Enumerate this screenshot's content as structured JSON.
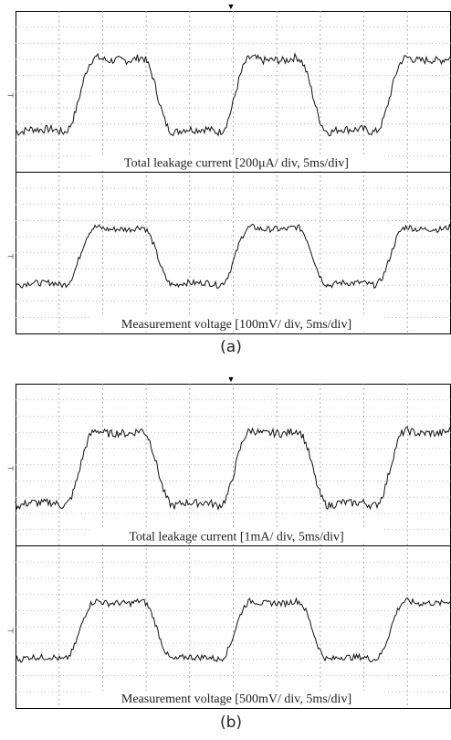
{
  "panels": [
    {
      "label": "(a)",
      "traces": [
        {
          "caption": "Total leakage current [200μA/ div, 5ms/div]"
        },
        {
          "caption": "Measurement voltage [100mV/ div, 5ms/div]"
        }
      ]
    },
    {
      "label": "(b)",
      "traces": [
        {
          "caption": "Total leakage current [1mA/ div, 5ms/div]"
        },
        {
          "caption": "Measurement voltage [500mV/ div, 5ms/div]"
        }
      ]
    }
  ]
}
